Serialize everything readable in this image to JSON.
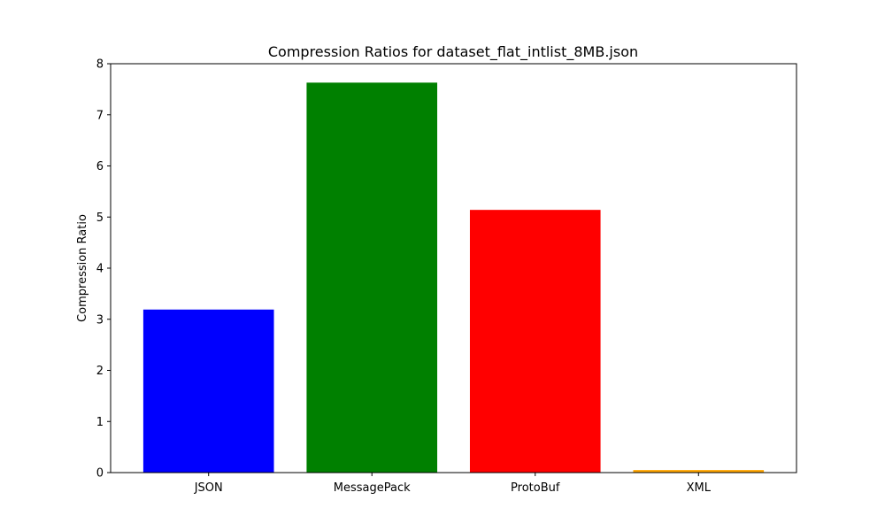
{
  "chart_data": {
    "type": "bar",
    "title": "Compression Ratios for dataset_flat_intlist_8MB.json",
    "xlabel": "",
    "ylabel": "Compression Ratio",
    "categories": [
      "JSON",
      "MessagePack",
      "ProtoBuf",
      "XML"
    ],
    "values": [
      3.19,
      7.63,
      5.14,
      0.05
    ],
    "colors": [
      "#0000ff",
      "#008000",
      "#ff0000",
      "#ffa500"
    ],
    "ylim": [
      0,
      8
    ],
    "yticks": [
      0,
      1,
      2,
      3,
      4,
      5,
      6,
      7,
      8
    ],
    "grid": false,
    "legend": "none"
  }
}
